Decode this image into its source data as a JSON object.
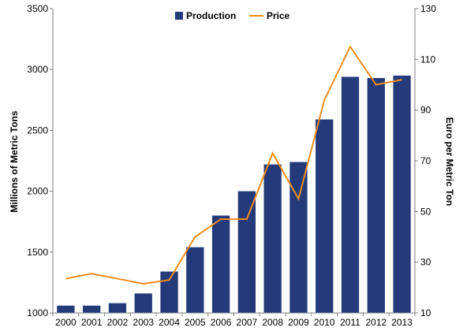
{
  "chart_data": {
    "type": "bar",
    "categories": [
      "2000",
      "2001",
      "2002",
      "2003",
      "2004",
      "2005",
      "2006",
      "2007",
      "2008",
      "2009",
      "2010",
      "2011",
      "2012",
      "2013"
    ],
    "series": [
      {
        "name": "Production",
        "type": "bar",
        "axis": "left",
        "color": "#243a7a",
        "values": [
          1060,
          1060,
          1080,
          1160,
          1340,
          1540,
          1800,
          2000,
          2220,
          2240,
          2590,
          2940,
          2930,
          2950
        ]
      },
      {
        "name": "Price",
        "type": "line",
        "axis": "right",
        "color": "#f28c1c",
        "values": [
          23.5,
          25.5,
          23.5,
          21.5,
          23,
          40,
          47,
          47,
          73,
          55,
          94,
          115,
          100,
          102
        ]
      }
    ],
    "ylabel": "Millions of Metric Tons",
    "y2label": "Euro per Metric Ton",
    "ylim": [
      1000,
      3500
    ],
    "y2lim": [
      10,
      130
    ],
    "yticks": [
      "1000",
      "1500",
      "2000",
      "2500",
      "3000",
      "3500"
    ],
    "y2ticks": [
      "10",
      "30",
      "50",
      "70",
      "90",
      "110",
      "130"
    ],
    "legend": "top-center",
    "grid": false
  }
}
